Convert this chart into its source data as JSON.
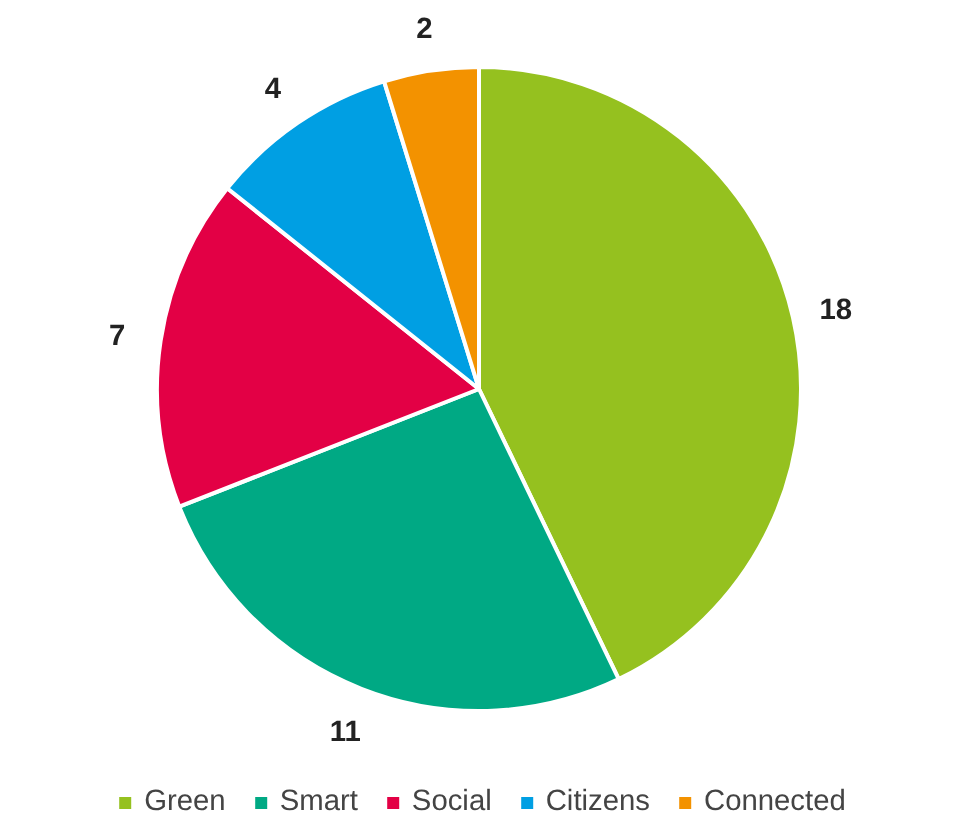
{
  "chart_data": {
    "type": "pie",
    "categories": [
      "Green",
      "Smart",
      "Social",
      "Citizens",
      "Connected"
    ],
    "values": [
      18,
      11,
      7,
      4,
      2
    ],
    "colors": [
      "#95c11f",
      "#00a984",
      "#e30045",
      "#009fe3",
      "#f39200"
    ],
    "data_labels": true,
    "legend": "bottom"
  }
}
